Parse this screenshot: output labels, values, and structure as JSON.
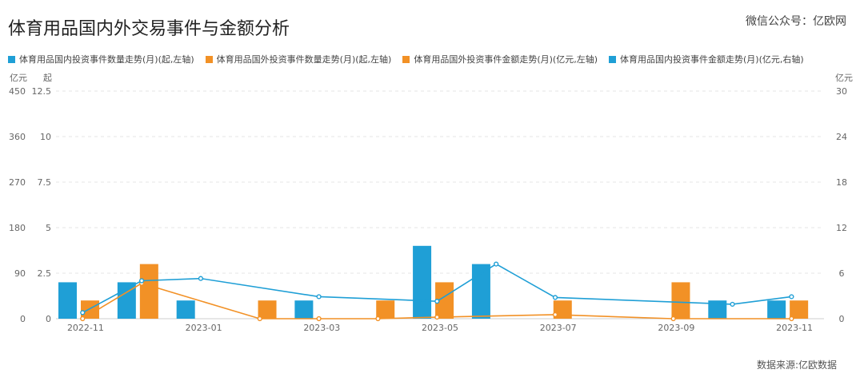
{
  "header": {
    "title": "体育用品国内外交易事件与金额分析",
    "watermark": "微信公众号：亿欧网"
  },
  "footer": {
    "source": "数据来源:亿欧数据"
  },
  "colors": {
    "blue": "#1f9fd6",
    "orange": "#f29126",
    "grid": "#e6e6e6"
  },
  "chart_data": {
    "type": "bar",
    "categories": [
      "2022-11",
      "2022-12",
      "2023-01",
      "2023-02",
      "2023-03",
      "2023-04",
      "2023-05",
      "2023-06",
      "2023-07",
      "2023-08",
      "2023-09",
      "2023-10",
      "2023-11"
    ],
    "x_tick_labels": [
      "2022-11",
      "2023-01",
      "2023-03",
      "2023-05",
      "2023-07",
      "2023-09",
      "2023-11"
    ],
    "axes": {
      "left_outer": {
        "unit": "亿元",
        "ticks": [
          "450",
          "360",
          "270",
          "180",
          "90",
          "0"
        ],
        "ylim": [
          0,
          450
        ]
      },
      "left_inner": {
        "unit": "起",
        "ticks": [
          "12.5",
          "10",
          "7.5",
          "5",
          "2.5",
          "0"
        ],
        "ylim": [
          0,
          12.5
        ]
      },
      "right": {
        "unit": "亿元",
        "ticks": [
          "30",
          "24",
          "18",
          "12",
          "6",
          "0"
        ],
        "ylim": [
          0,
          30
        ]
      }
    },
    "series": [
      {
        "name": "体育用品国内投资事件数量走势(月)(起,左轴)",
        "type": "bar",
        "axis": "left_inner",
        "color": "#1f9fd6",
        "values": [
          2,
          2,
          1,
          0,
          1,
          0,
          4,
          3,
          0,
          0,
          0,
          1,
          1
        ]
      },
      {
        "name": "体育用品国外投资事件数量走势(月)(起,左轴)",
        "type": "bar",
        "axis": "left_inner",
        "color": "#f29126",
        "values": [
          1,
          3,
          0,
          1,
          0,
          1,
          2,
          0,
          1,
          0,
          2,
          0,
          1
        ]
      },
      {
        "name": "体育用品国外投资事件金额走势(月)(亿元,左轴)",
        "type": "line",
        "axis": "left_outer",
        "color": "#f29126",
        "values": [
          0,
          70,
          null,
          0,
          0,
          0,
          3,
          null,
          8,
          null,
          0,
          null,
          0
        ]
      },
      {
        "name": "体育用品国内投资事件金额走势(月)(亿元,右轴)",
        "type": "line",
        "axis": "right",
        "color": "#1f9fd6",
        "values": [
          0.8,
          5,
          5.3,
          null,
          2.9,
          null,
          2.3,
          7.2,
          2.8,
          null,
          null,
          1.9,
          2.9
        ]
      }
    ],
    "grid": true,
    "legend_position": "top-left"
  }
}
